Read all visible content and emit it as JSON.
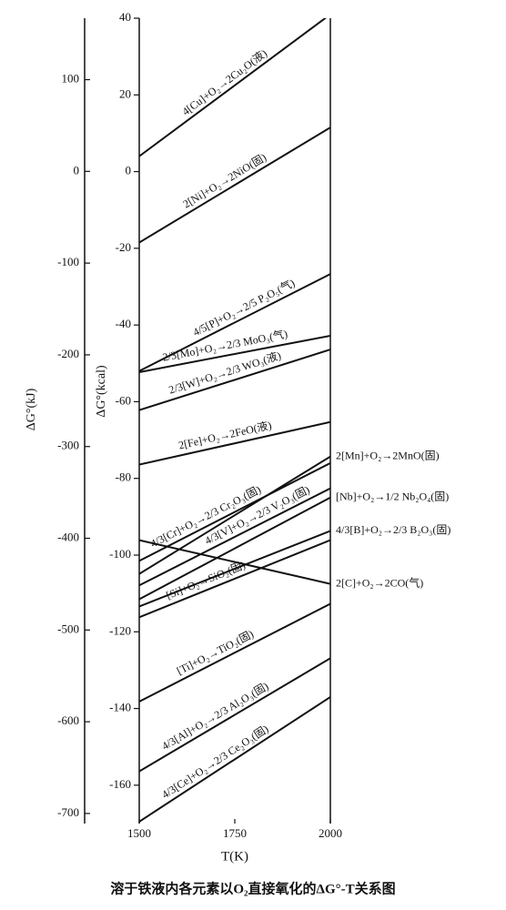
{
  "chart_data": {
    "type": "line",
    "caption": "溶于铁液内各元素以O₂直接氧化的ΔG°-T关系图",
    "x_label": "T(K)",
    "y_label": "ΔG°(kcal)",
    "y2_label": "ΔG°(kJ)",
    "x": [
      1500,
      2000
    ],
    "xlim": [
      1500,
      2000
    ],
    "xticks": [
      1500,
      1750,
      2000
    ],
    "ylim": [
      -170,
      40
    ],
    "yticks": [
      40,
      20,
      0,
      -20,
      -40,
      -60,
      -80,
      -100,
      -120,
      -140,
      -160
    ],
    "y2lim": [
      -711,
      167
    ],
    "y2ticks": [
      100,
      0,
      -100,
      -200,
      -300,
      -400,
      -500,
      -600,
      -700
    ],
    "color": "#111111",
    "series": [
      {
        "name": "4[Cu]+O₂→2Cu₂O(液)",
        "values": [
          4,
          41
        ]
      },
      {
        "name": "2[Ni]+O₂→2NiO(固)",
        "values": [
          -18.5,
          11.5
        ]
      },
      {
        "name": "4/5[P]+O₂→2/5 P₂O₅(气)",
        "values": [
          -52,
          -26.7
        ]
      },
      {
        "name": "2/3[Mo]+O₂→2/3 MoO₃(气)",
        "values": [
          -52.3,
          -42.8
        ]
      },
      {
        "name": "2/3[W]+O₂→2/3 WO₃(液)",
        "values": [
          -62.2,
          -46.4
        ]
      },
      {
        "name": "2[Fe]+O₂→2FeO(液)",
        "values": [
          -76.4,
          -65.3
        ]
      },
      {
        "name": "2[Mn]+O₂→2MnO(固)",
        "values": [
          -104.9,
          -74.3
        ]
      },
      {
        "name": "4/3[Cr]+O₂→2/3 Cr₂O₃(固)",
        "values": [
          -101.5,
          -76
        ]
      },
      {
        "name": "4/3[V]+O₂→2/3 V₂O₃(固)",
        "values": [
          -107.9,
          -82.6
        ]
      },
      {
        "name": "[Nb]+O₂→1/2 Nb₂O₄(固)",
        "values": [
          -111.5,
          -85
        ]
      },
      {
        "name": "4/3[B]+O₂→2/3 B₂O₃(固)",
        "values": [
          -113.4,
          -93.7
        ]
      },
      {
        "name": "2[C]+O₂→2CO(气)",
        "values": [
          -96.1,
          -107.5
        ]
      },
      {
        "name": "[Si]+O₂→SiO₂(固)",
        "values": [
          -116.2,
          -96.1
        ]
      },
      {
        "name": "[Ti]+O₂→TiO₂(固)",
        "values": [
          -138.2,
          -112.7
        ]
      },
      {
        "name": "4/3[Al]+O₂→2/3 Al₂O₃(固)",
        "values": [
          -156.4,
          -126.9
        ]
      },
      {
        "name": "4/3[Ce]+O₂→2/3 Ce₂O₃(固)",
        "values": [
          -169.5,
          -137
        ]
      }
    ]
  }
}
